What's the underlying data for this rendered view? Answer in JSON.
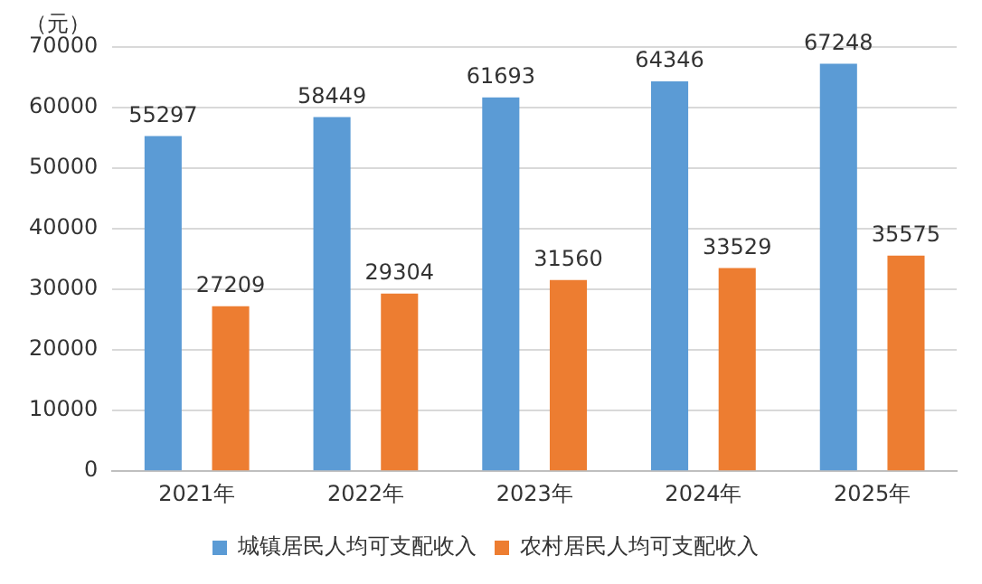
{
  "chart_data": {
    "type": "bar",
    "ylabel": "（元）",
    "categories": [
      "2021年",
      "2022年",
      "2023年",
      "2024年",
      "2025年"
    ],
    "series": [
      {
        "name": "城镇居民人均可支配收入",
        "color": "#5b9bd5",
        "values": [
          55297,
          58449,
          61693,
          64346,
          67248
        ]
      },
      {
        "name": "农村居民人均可支配收入",
        "color": "#ed7d31",
        "values": [
          27209,
          29304,
          31560,
          33529,
          35575
        ]
      }
    ],
    "ylim": [
      0,
      70000
    ],
    "yticks": [
      0,
      10000,
      20000,
      30000,
      40000,
      50000,
      60000,
      70000
    ],
    "grid": "y",
    "legend": "bottom",
    "data_labels": true
  }
}
